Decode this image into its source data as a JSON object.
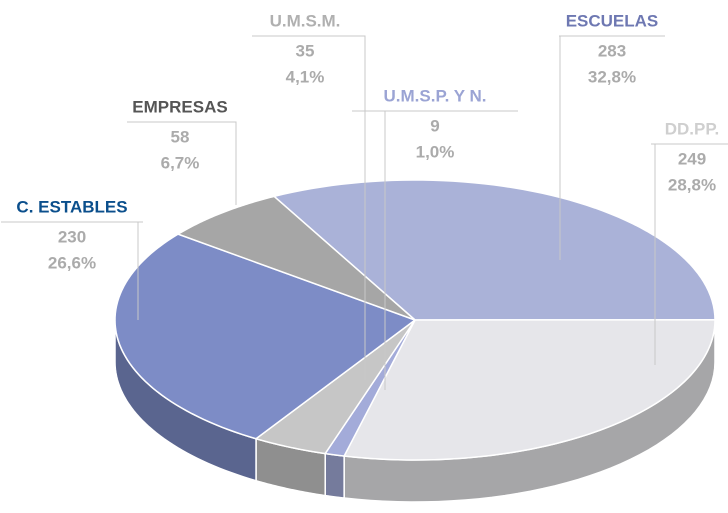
{
  "chart_data": {
    "type": "pie3d",
    "categories": [
      "ESCUELAS",
      "DD.PP.",
      "U.M.S.P. Y N.",
      "U.M.S.M.",
      "C. ESTABLES",
      "EMPRESAS"
    ],
    "values": [
      283,
      249,
      9,
      35,
      230,
      58
    ],
    "percentages": [
      32.8,
      28.8,
      1.0,
      4.1,
      26.6,
      6.7
    ],
    "percentage_labels": [
      "32,8%",
      "28,8%",
      "1,0%",
      "4,1%",
      "26,6%",
      "6,7%"
    ],
    "colors": [
      "#aab2d8",
      "#e6e6ea",
      "#a3abd9",
      "#c6c6c6",
      "#7d8cc6",
      "#a6a6a6"
    ],
    "label_colors": [
      "#6e78b2",
      "#cfcfcf",
      "#9ba4d4",
      "#b0b0b0",
      "#0b4f8c",
      "#555555"
    ]
  }
}
